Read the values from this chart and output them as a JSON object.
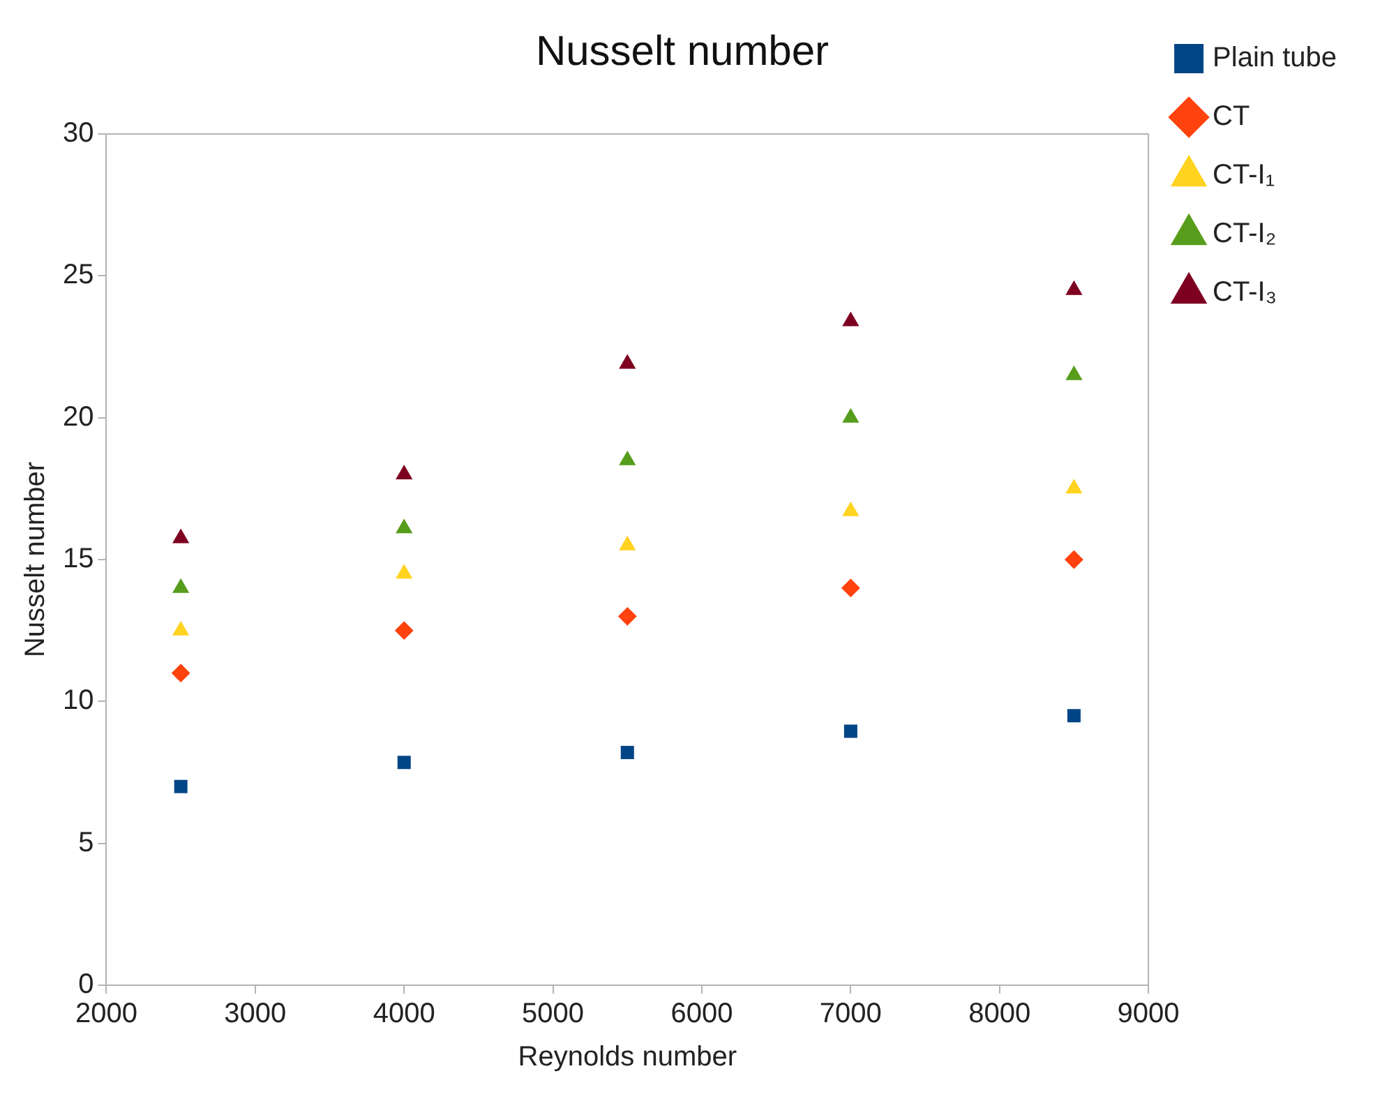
{
  "chart_data": {
    "type": "scatter",
    "title": "Nusselt number",
    "xlabel": "Reynolds number",
    "ylabel": "Nusselt number",
    "x": [
      2500,
      4000,
      5500,
      7000,
      8500
    ],
    "xlim": [
      2000,
      9000
    ],
    "xticks": [
      2000,
      3000,
      4000,
      5000,
      6000,
      7000,
      8000,
      9000
    ],
    "ylim": [
      0,
      30
    ],
    "yticks": [
      0,
      5,
      10,
      15,
      20,
      25,
      30
    ],
    "grid": false,
    "legend": "top right",
    "series": [
      {
        "name": "Plain tube",
        "color": "#004586",
        "marker": "square",
        "values": [
          7.0,
          7.85,
          8.2,
          8.95,
          9.5
        ]
      },
      {
        "name": "CT",
        "color": "#ff420e",
        "marker": "diamond",
        "values": [
          11.0,
          12.5,
          13.0,
          14.0,
          15.0
        ]
      },
      {
        "name": "CT-I₁",
        "color": "#ffd320",
        "marker": "triangle",
        "values": [
          12.5,
          14.5,
          15.5,
          16.7,
          17.5
        ]
      },
      {
        "name": "CT-I₂",
        "color": "#579d1c",
        "marker": "triangle",
        "values": [
          14.0,
          16.1,
          18.5,
          20.0,
          21.5
        ]
      },
      {
        "name": "CT-I₃",
        "color": "#7e0021",
        "marker": "triangle",
        "values": [
          15.75,
          18.0,
          21.9,
          23.4,
          24.5
        ]
      }
    ]
  }
}
